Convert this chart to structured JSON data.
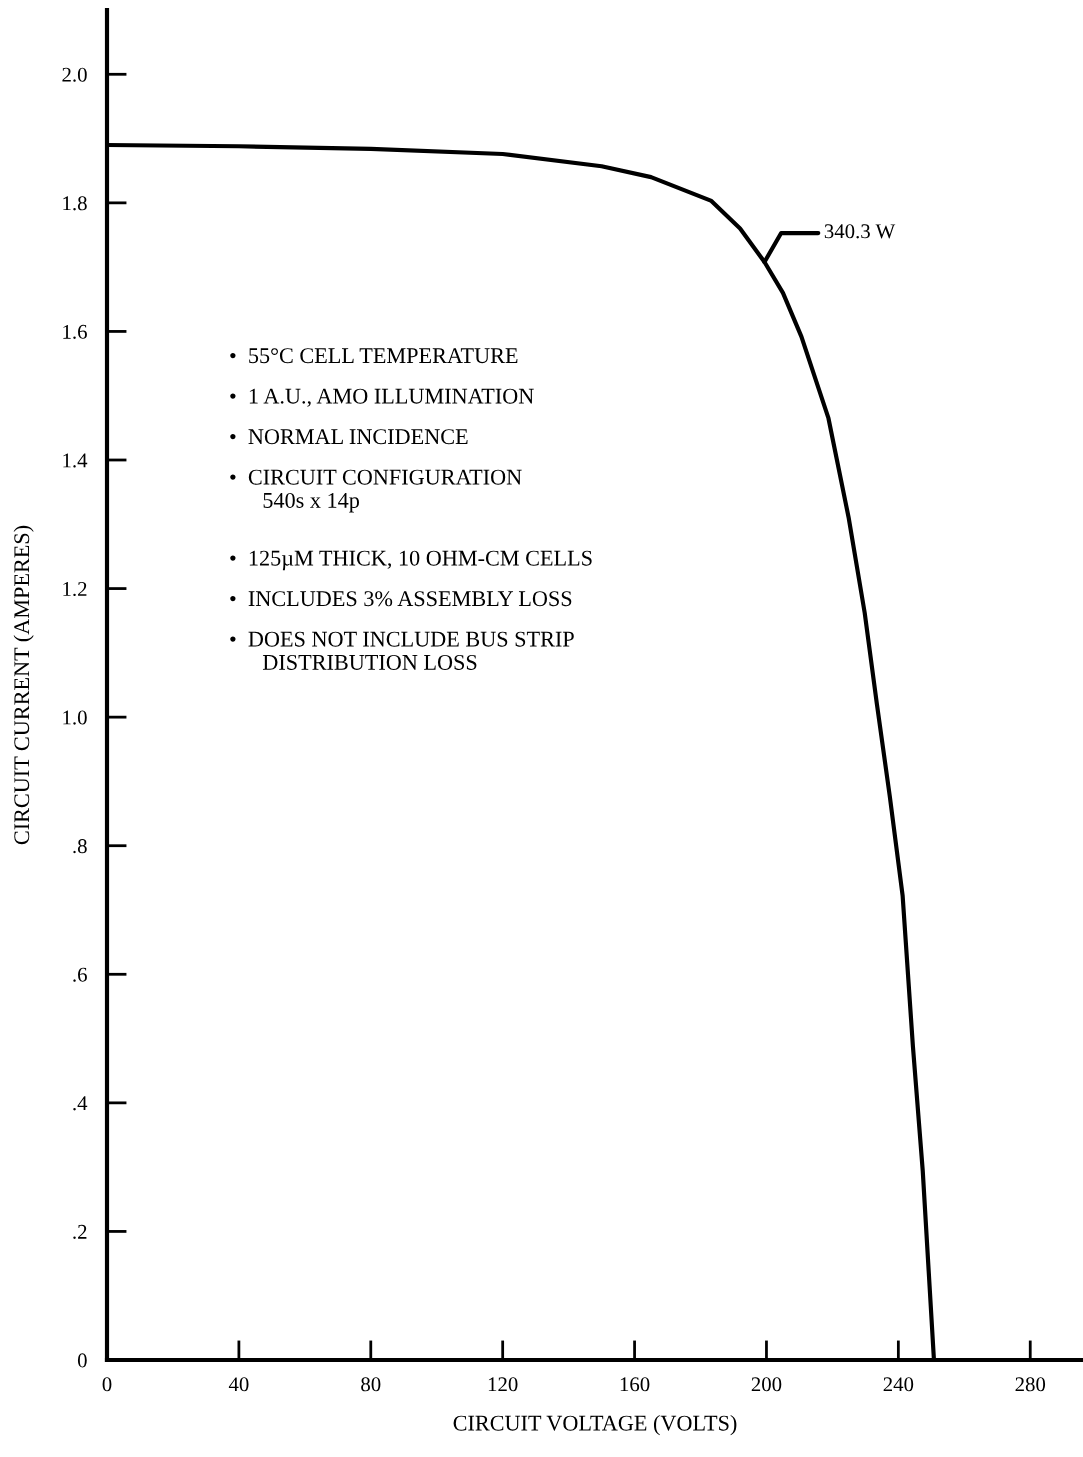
{
  "chart_data": {
    "type": "line",
    "xlabel": "CIRCUIT VOLTAGE (VOLTS)",
    "ylabel": "CIRCUIT CURRENT (AMPERES)",
    "series": [
      {
        "color": "#000000",
        "x": [
          0,
          40,
          80,
          120,
          150,
          165,
          183.3,
          192,
          199.4,
          205,
          210.6,
          218.8,
          224.9,
          229.8,
          233.5,
          237.4,
          241.3,
          244.4,
          247.4,
          250.8
        ],
        "values": [
          1.89,
          1.888,
          1.884,
          1.876,
          1.857,
          1.84,
          1.803,
          1.76,
          1.708,
          1.66,
          1.592,
          1.465,
          1.311,
          1.162,
          1.02,
          0.877,
          0.722,
          0.489,
          0.294,
          0
        ]
      }
    ],
    "xlim": [
      0,
      296
    ],
    "ylim": [
      0,
      2.1
    ],
    "xticks": [
      0,
      40,
      80,
      120,
      160,
      200,
      240,
      280
    ],
    "yticks": [
      0,
      {
        "value": 0.2,
        "label": ".2"
      },
      {
        "value": 0.4,
        "label": ".4"
      },
      {
        "value": 0.6,
        "label": ".6"
      },
      {
        "value": 0.8,
        "label": ".8"
      },
      {
        "value": 1.0,
        "label": "1.0"
      },
      {
        "value": 1.2,
        "label": "1.2"
      },
      {
        "value": 1.4,
        "label": "1.4"
      },
      {
        "value": 1.6,
        "label": "1.6"
      },
      {
        "value": 1.8,
        "label": "1.8"
      },
      {
        "value": 2.0,
        "label": "2.0"
      }
    ],
    "grid": false,
    "marker": "none",
    "line_style": "solid",
    "annotations": [
      {
        "text": "340.3 W",
        "x": 199.4,
        "y": 1.708
      },
      "•  55°C CELL TEMPERATURE",
      "•  1 A.U., AMO ILLUMINATION",
      "•  NORMAL INCIDENCE",
      "•  CIRCUIT CONFIGURATION\n      540s x 14p",
      "•  125µM THICK, 10 OHM-CM CELLS",
      "•  INCLUDES 3% ASSEMBLY LOSS",
      "•  DOES NOT INCLUDE BUS STRIP\n      DISTRIBUTION LOSS"
    ]
  }
}
